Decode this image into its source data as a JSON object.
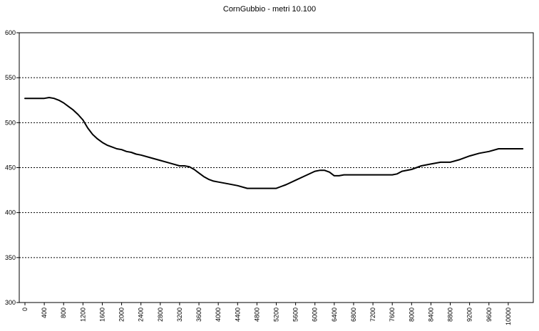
{
  "chart_data": {
    "type": "line",
    "title": "CornGubbio - metri 10.100",
    "xlabel": "",
    "ylabel": "",
    "xlim": [
      0,
      10400
    ],
    "ylim": [
      300,
      600
    ],
    "yticks": [
      300,
      350,
      400,
      450,
      500,
      550,
      600
    ],
    "xticks": [
      0,
      400,
      800,
      1200,
      1600,
      2000,
      2400,
      2800,
      3200,
      3600,
      4000,
      4400,
      4800,
      5200,
      5600,
      6000,
      6400,
      6800,
      7200,
      7600,
      8000,
      8400,
      8800,
      9200,
      9600,
      10000
    ],
    "grid": "horizontal-dotted",
    "legend": "none",
    "line_color": "#000000",
    "series": [
      {
        "x": [
          0,
          200,
          400,
          500,
          600,
          700,
          800,
          900,
          1000,
          1100,
          1200,
          1300,
          1400,
          1500,
          1600,
          1700,
          1800,
          1900,
          2000,
          2100,
          2200,
          2300,
          2400,
          2600,
          2800,
          3000,
          3200,
          3300,
          3400,
          3500,
          3600,
          3700,
          3800,
          3900,
          4000,
          4200,
          4400,
          4600,
          4800,
          5000,
          5200,
          5300,
          5400,
          5600,
          5800,
          6000,
          6100,
          6200,
          6300,
          6400,
          6500,
          6600,
          6800,
          7000,
          7200,
          7400,
          7600,
          7700,
          7800,
          8000,
          8200,
          8400,
          8600,
          8800,
          9000,
          9200,
          9400,
          9600,
          9800,
          10000,
          10200,
          10300
        ],
        "values": [
          527,
          527,
          527,
          528,
          527,
          525,
          522,
          518,
          514,
          509,
          503,
          494,
          487,
          482,
          478,
          475,
          473,
          471,
          470,
          468,
          467,
          465,
          464,
          461,
          458,
          455,
          452,
          452,
          451,
          448,
          444,
          440,
          437,
          435,
          434,
          432,
          430,
          427,
          427,
          427,
          427,
          429,
          431,
          436,
          441,
          446,
          447,
          447,
          445,
          441,
          441,
          442,
          442,
          442,
          442,
          442,
          442,
          443,
          446,
          448,
          452,
          454,
          456,
          456,
          459,
          463,
          466,
          468,
          471,
          471,
          471,
          471
        ]
      }
    ]
  }
}
